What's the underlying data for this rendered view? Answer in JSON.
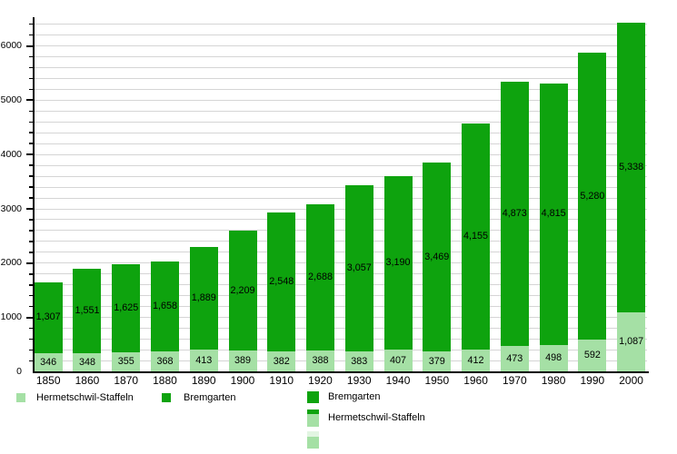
{
  "chart_data": {
    "type": "bar",
    "stacked": true,
    "categories": [
      "1850",
      "1860",
      "1870",
      "1880",
      "1890",
      "1900",
      "1910",
      "1920",
      "1930",
      "1940",
      "1950",
      "1960",
      "1970",
      "1980",
      "1990",
      "2000"
    ],
    "series": [
      {
        "name": "Hermetschwil-Staffeln",
        "color": "#a5e0a5",
        "values": [
          346,
          348,
          355,
          368,
          413,
          389,
          382,
          388,
          383,
          407,
          379,
          412,
          473,
          498,
          592,
          1087
        ]
      },
      {
        "name": "Bremgarten",
        "color": "#0ea30e",
        "values": [
          1307,
          1551,
          1625,
          1658,
          1889,
          2209,
          2548,
          2688,
          3057,
          3190,
          3469,
          4155,
          4873,
          4815,
          5280,
          5338
        ]
      }
    ],
    "title": "",
    "xlabel": "",
    "ylabel": "",
    "ylim": [
      0,
      6500
    ],
    "yticks_major": [
      0,
      1000,
      2000,
      3000,
      4000,
      5000,
      6000
    ],
    "ytick_minor_step": 200,
    "grid": true,
    "legend_position": "bottom"
  },
  "legend_row": [
    {
      "label": "Hermetschwil-Staffeln",
      "swatch": [
        "#a5e0a5"
      ]
    },
    {
      "label": "Bremgarten",
      "swatch": [
        "#0ea30e"
      ]
    }
  ],
  "legend_column": [
    {
      "label": "Bremgarten",
      "swatch": [
        "#0ea30e"
      ]
    },
    {
      "label": "Hermetschwil-Staffeln",
      "swatch": [
        "#0ea30e",
        "#a5e0a5"
      ]
    },
    {
      "label": "",
      "swatch": [
        "#e2f5e2",
        "#a5e0a5"
      ]
    }
  ],
  "colors": {
    "grid": "#d5d5d5",
    "axis": "#000000",
    "background": "#ffffff"
  }
}
